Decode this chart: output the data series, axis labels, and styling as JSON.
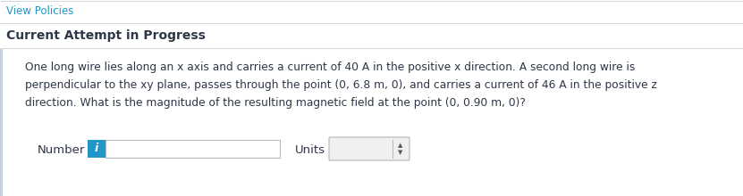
{
  "view_policies_text": "View Policies",
  "view_policies_color": "#2196c8",
  "heading_text": "Current Attempt in Progress",
  "heading_color": "#2d3748",
  "body_line1": "One long wire lies along an x axis and carries a current of 40 A in the positive x direction. A second long wire is",
  "body_line2": "perpendicular to the xy plane, passes through the point (0, 6.8 m, 0), and carries a current of 46 A in the positive z",
  "body_line3": "direction. What is the magnitude of the resulting magnetic field at the point (0, 0.90 m, 0)?",
  "body_text_color": "#2d3748",
  "body_font_size": 8.8,
  "number_label": "Number",
  "units_label": "Units",
  "label_color": "#2d3748",
  "label_font_size": 9.5,
  "info_btn_color": "#2196c8",
  "info_btn_text_color": "#ffffff",
  "input_box_facecolor": "#ffffff",
  "input_border_color": "#b0b8c1",
  "units_box_facecolor": "#f0f0f0",
  "units_border_color": "#b0b8c1",
  "background_color": "#ffffff",
  "left_accent_color": "#c8d0e0",
  "separator_color": "#d0d5dd",
  "fig_width": 8.31,
  "fig_height": 2.2,
  "dpi": 100
}
